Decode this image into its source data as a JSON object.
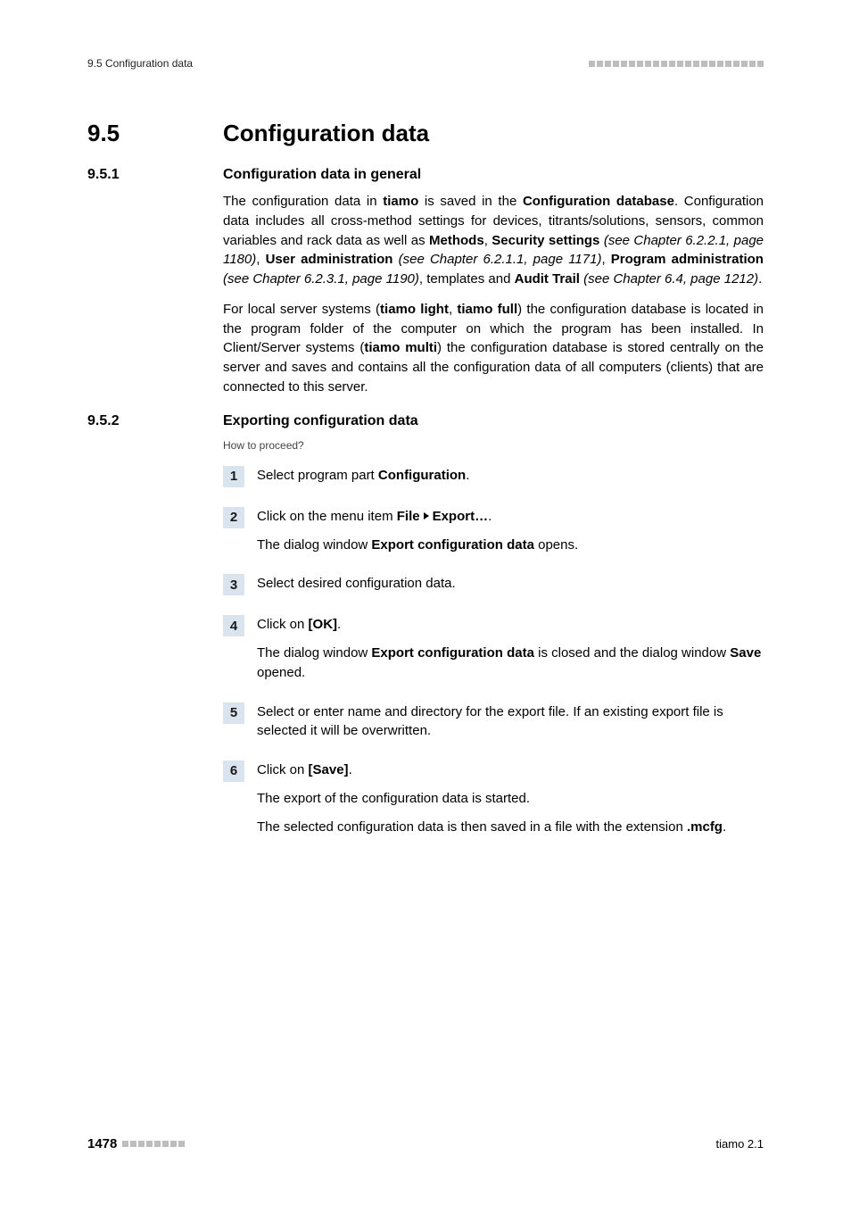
{
  "header": {
    "left": "9.5 Configuration data",
    "square_count": 22,
    "square_color": "#bdbdbd"
  },
  "section": {
    "number": "9.5",
    "title": "Configuration data"
  },
  "sub1": {
    "number": "9.5.1",
    "title": "Configuration data in general",
    "p1_a": "The configuration data in ",
    "p1_b": "tiamo",
    "p1_c": " is saved in the ",
    "p1_d": "Configuration data­base",
    "p1_e": ". Configuration data includes all cross-method settings for devices, titrants/solutions, sensors, common variables and rack data as well as ",
    "p1_f": "Methods",
    "p1_g": ", ",
    "p1_h": "Security settings",
    "p1_i": " (see Chapter 6.2.2.1, page 1180)",
    "p1_j": ", ",
    "p1_k": "User administration",
    "p1_l": " (see Chapter 6.2.1.1, page 1171)",
    "p1_m": ", ",
    "p1_n": "Program administra­tion",
    "p1_o": " (see Chapter 6.2.3.1, page 1190)",
    "p1_p": ", templates and ",
    "p1_q": "Audit Trail",
    "p1_r": " (see Chapter 6.4, page 1212)",
    "p1_s": ".",
    "p2_a": "For local server systems (",
    "p2_b": "tiamo light",
    "p2_c": ", ",
    "p2_d": "tiamo full",
    "p2_e": ") the configuration data­base is located in the program folder of the computer on which the program has been installed. In Client/Server systems (",
    "p2_f": "tiamo multi",
    "p2_g": ") the configuration database is stored centrally on the server and saves and contains all the configuration data of all computers (clients) that are connected to this server."
  },
  "sub2": {
    "number": "9.5.2",
    "title": "Exporting configuration data",
    "howto": "How to proceed?",
    "steps": {
      "s1": {
        "n": "1",
        "a": "Select program part ",
        "b": "Configuration",
        "c": "."
      },
      "s2": {
        "n": "2",
        "a": "Click on the menu item ",
        "b": "File",
        "c": "Export…",
        "d": ".",
        "e": "The dialog window ",
        "f": "Export configuration data",
        "g": " opens."
      },
      "s3": {
        "n": "3",
        "a": "Select desired configuration data."
      },
      "s4": {
        "n": "4",
        "a": "Click on ",
        "b": "[OK]",
        "c": ".",
        "d": "The dialog window ",
        "e": "Export configuration data",
        "f": " is closed and the dialog window ",
        "g": "Save",
        "h": " opened."
      },
      "s5": {
        "n": "5",
        "a": "Select or enter name and directory for the export file. If an existing export file is selected it will be overwritten."
      },
      "s6": {
        "n": "6",
        "a": "Click on ",
        "b": "[Save]",
        "c": ".",
        "d": "The export of the configuration data is started.",
        "e": "The selected configuration data is then saved in a file with the exten­sion ",
        "f": ".mcfg",
        "g": "."
      }
    }
  },
  "footer": {
    "page": "1478",
    "square_count": 8,
    "right": "tiamo 2.1"
  },
  "colors": {
    "step_bg": "#d9e4ee",
    "square": "#bdbdbd",
    "text": "#000000"
  }
}
